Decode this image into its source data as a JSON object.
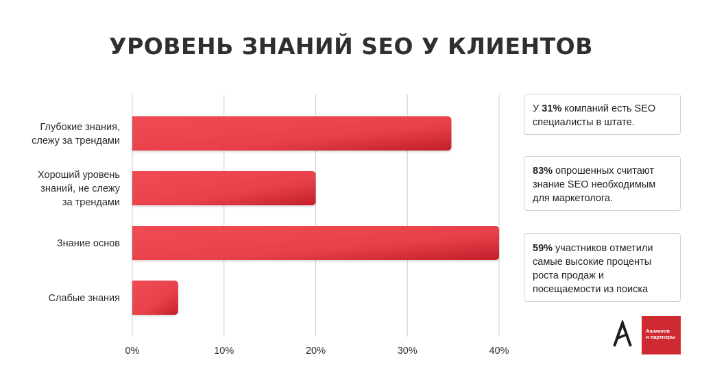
{
  "chart_data": {
    "type": "bar",
    "orientation": "horizontal",
    "title": "УРОВЕНЬ ЗНАНИЙ SEO У КЛИЕНТОВ",
    "categories": [
      [
        "Глубокие знания,",
        "слежу за трендами"
      ],
      [
        "Хороший уровень",
        "знаний, не слежу",
        "за трендами"
      ],
      [
        "Знание основ"
      ],
      [
        "Слабые знания"
      ]
    ],
    "values": [
      34.8,
      20,
      40,
      5
    ],
    "xlim": [
      0,
      40
    ],
    "x_ticks": [
      "0%",
      "10%",
      "20%",
      "30%",
      "40%"
    ],
    "grid": true,
    "bar_color": "#e8414b",
    "bar_color_dark": "#c9222d"
  },
  "facts": [
    {
      "pre": "У ",
      "bold": "31%",
      "post": " компаний есть SEO специалисты в штате."
    },
    {
      "pre": "",
      "bold": "83%",
      "post": " опрошенных считают знание SEO необходимым для маркетолога."
    },
    {
      "pre": "",
      "bold": "59%",
      "post": " участников отметили самые высокие проценты роста продаж и посещаемости из поиска"
    }
  ],
  "logo": {
    "line1": "Ашманов",
    "line2": "и партнеры",
    "color": "#cf2a32"
  }
}
